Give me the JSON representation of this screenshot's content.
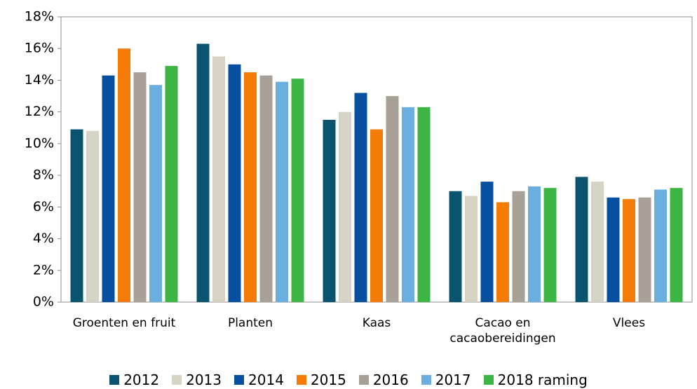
{
  "chart_data": {
    "type": "bar",
    "categories": [
      "Groenten en fruit",
      "Planten",
      "Kaas",
      "Cacao en cacaobereidingen",
      "Vlees"
    ],
    "series": [
      {
        "name": "2012",
        "color": "#0b5470",
        "values": [
          10.9,
          16.3,
          11.5,
          7.0,
          7.9
        ]
      },
      {
        "name": "2013",
        "color": "#d6d2c4",
        "values": [
          10.8,
          15.5,
          12.0,
          6.7,
          7.6
        ]
      },
      {
        "name": "2014",
        "color": "#0750a0",
        "values": [
          14.3,
          15.0,
          13.2,
          7.6,
          6.6
        ]
      },
      {
        "name": "2015",
        "color": "#f57b07",
        "values": [
          16.0,
          14.5,
          10.9,
          6.3,
          6.5
        ]
      },
      {
        "name": "2016",
        "color": "#a89f97",
        "values": [
          14.5,
          14.3,
          13.0,
          7.0,
          6.6
        ]
      },
      {
        "name": "2017",
        "color": "#6aaee0",
        "values": [
          13.7,
          13.9,
          12.3,
          7.3,
          7.1
        ]
      },
      {
        "name": "2018 raming",
        "color": "#3cb544",
        "values": [
          14.9,
          14.1,
          12.3,
          7.2,
          7.2
        ]
      }
    ],
    "ylim": [
      0,
      18
    ],
    "yticks": [
      {
        "value": 0,
        "label": "0%"
      },
      {
        "value": 2,
        "label": "2%"
      },
      {
        "value": 4,
        "label": "4%"
      },
      {
        "value": 6,
        "label": "6%"
      },
      {
        "value": 8,
        "label": "8%"
      },
      {
        "value": 10,
        "label": "10%"
      },
      {
        "value": 12,
        "label": "12%"
      },
      {
        "value": 14,
        "label": "14%"
      },
      {
        "value": 16,
        "label": "16%"
      },
      {
        "value": 18,
        "label": "18%"
      }
    ],
    "grid": false,
    "legend": "bottom"
  }
}
